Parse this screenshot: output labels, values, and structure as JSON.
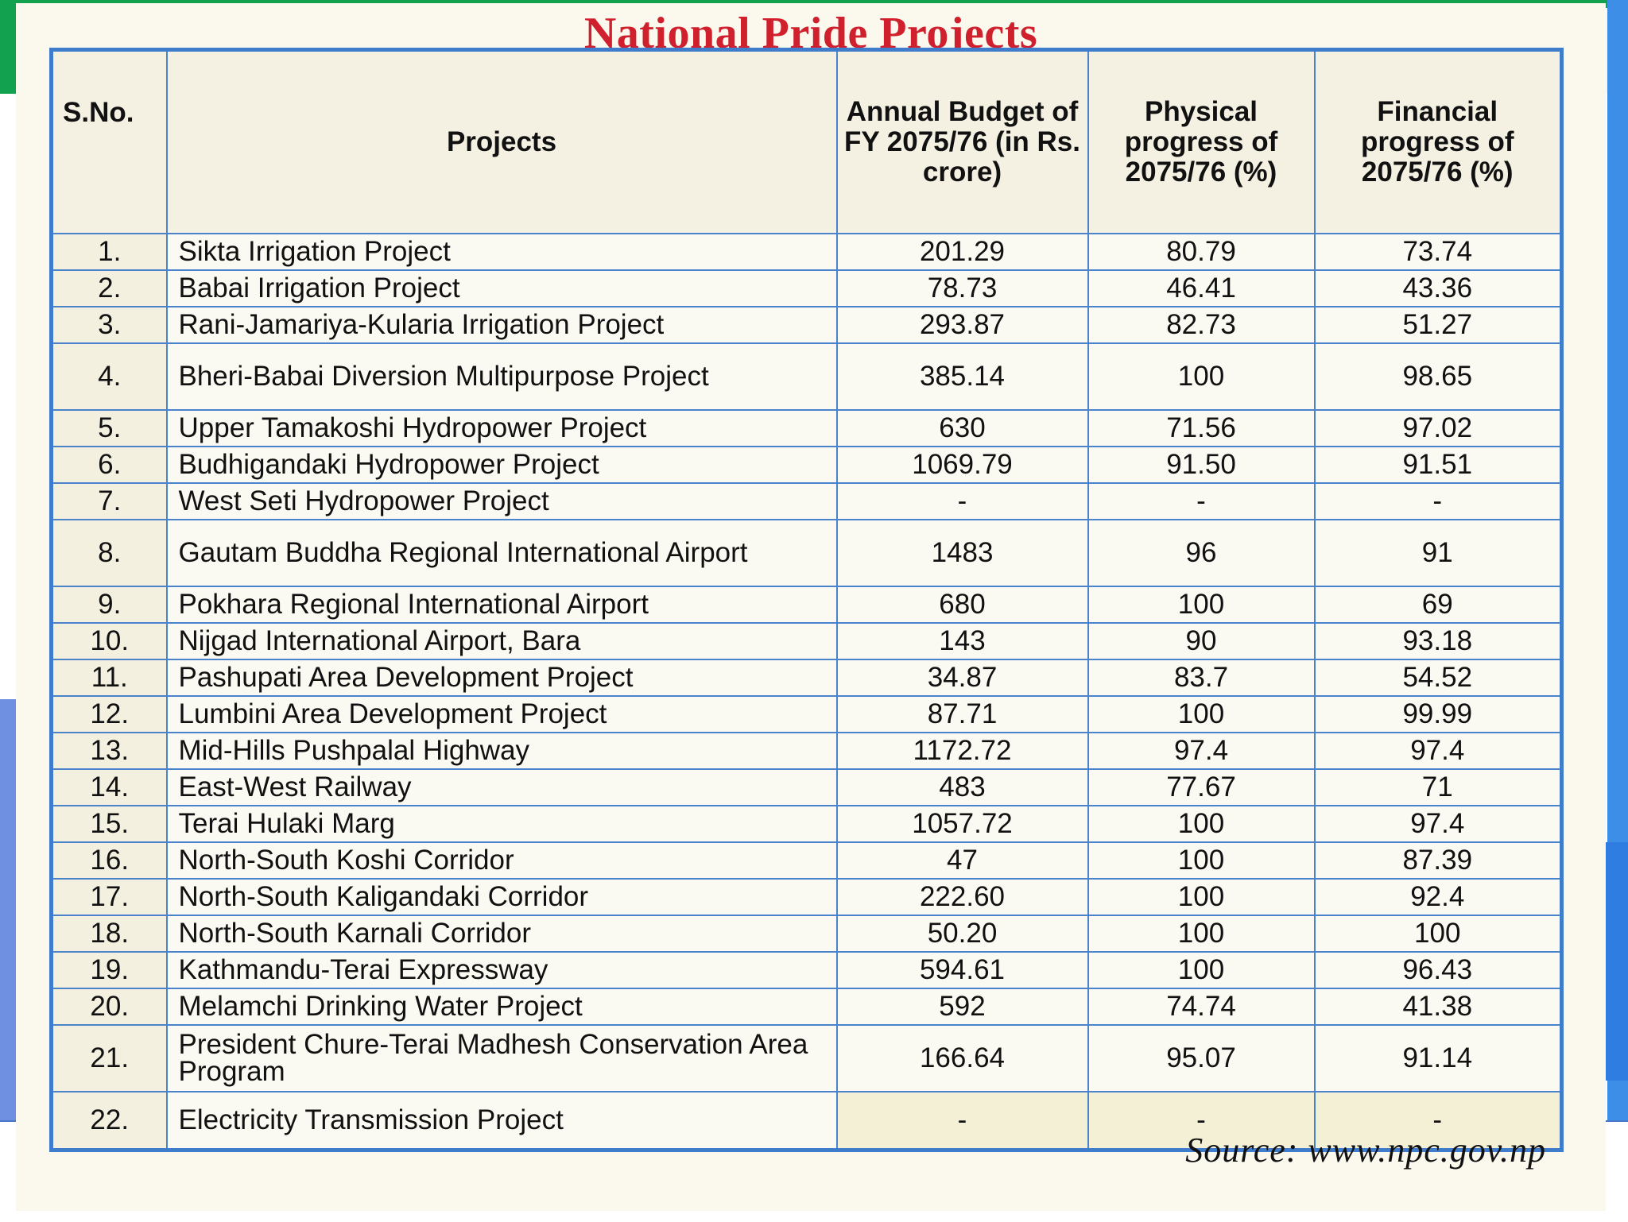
{
  "title": "National Pride Projects",
  "headers": {
    "sno": "S.No.",
    "project": "Projects",
    "budget": "Annual Budget of FY 2075/76 (in Rs. crore)",
    "physical": "Physical progress of 2075/76 (%)",
    "financial": "Financial progress of 2075/76 (%)"
  },
  "rows": [
    {
      "sno": "1.",
      "project": "Sikta Irrigation Project",
      "budget": "201.29",
      "physical": "80.79",
      "financial": "73.74"
    },
    {
      "sno": "2.",
      "project": "Babai Irrigation Project",
      "budget": "78.73",
      "physical": "46.41",
      "financial": "43.36"
    },
    {
      "sno": "3.",
      "project": "Rani-Jamariya-Kularia Irrigation Project",
      "budget": "293.87",
      "physical": "82.73",
      "financial": "51.27"
    },
    {
      "sno": "4.",
      "project": "Bheri-Babai Diversion Multipurpose Project",
      "budget": "385.14",
      "physical": "100",
      "financial": "98.65"
    },
    {
      "sno": "5.",
      "project": "Upper Tamakoshi Hydropower Project",
      "budget": "630",
      "physical": "71.56",
      "financial": "97.02"
    },
    {
      "sno": "6.",
      "project": "Budhigandaki Hydropower Project",
      "budget": "1069.79",
      "physical": "91.50",
      "financial": "91.51"
    },
    {
      "sno": "7.",
      "project": "West Seti Hydropower Project",
      "budget": "-",
      "physical": "-",
      "financial": "-"
    },
    {
      "sno": "8.",
      "project": "Gautam Buddha Regional International Airport",
      "budget": "1483",
      "physical": "96",
      "financial": "91"
    },
    {
      "sno": "9.",
      "project": "Pokhara Regional International Airport",
      "budget": "680",
      "physical": "100",
      "financial": "69"
    },
    {
      "sno": "10.",
      "project": "Nijgad International Airport, Bara",
      "budget": "143",
      "physical": "90",
      "financial": "93.18"
    },
    {
      "sno": "11.",
      "project": "Pashupati Area Development Project",
      "budget": "34.87",
      "physical": "83.7",
      "financial": "54.52"
    },
    {
      "sno": "12.",
      "project": "Lumbini Area Development Project",
      "budget": "87.71",
      "physical": "100",
      "financial": "99.99"
    },
    {
      "sno": "13.",
      "project": "Mid-Hills Pushpalal Highway",
      "budget": "1172.72",
      "physical": "97.4",
      "financial": "97.4"
    },
    {
      "sno": "14.",
      "project": "East-West Railway",
      "budget": "483",
      "physical": "77.67",
      "financial": "71"
    },
    {
      "sno": "15.",
      "project": "Terai Hulaki Marg",
      "budget": "1057.72",
      "physical": "100",
      "financial": "97.4"
    },
    {
      "sno": "16.",
      "project": "North-South Koshi Corridor",
      "budget": "47",
      "physical": "100",
      "financial": "87.39"
    },
    {
      "sno": "17.",
      "project": "North-South Kaligandaki Corridor",
      "budget": "222.60",
      "physical": "100",
      "financial": "92.4"
    },
    {
      "sno": "18.",
      "project": "North-South Karnali Corridor",
      "budget": "50.20",
      "physical": "100",
      "financial": "100"
    },
    {
      "sno": "19.",
      "project": "Kathmandu-Terai Expressway",
      "budget": "594.61",
      "physical": "100",
      "financial": "96.43"
    },
    {
      "sno": "20.",
      "project": "Melamchi Drinking Water Project",
      "budget": "592",
      "physical": "74.74",
      "financial": "41.38"
    },
    {
      "sno": "21.",
      "project": "President Chure-Terai Madhesh Conservation Area Program",
      "budget": "166.64",
      "physical": "95.07",
      "financial": "91.14"
    },
    {
      "sno": "22.",
      "project": "Electricity Transmission Project",
      "budget": "-",
      "physical": "-",
      "financial": "-"
    }
  ],
  "source": "Source: www.npc.gov.np"
}
